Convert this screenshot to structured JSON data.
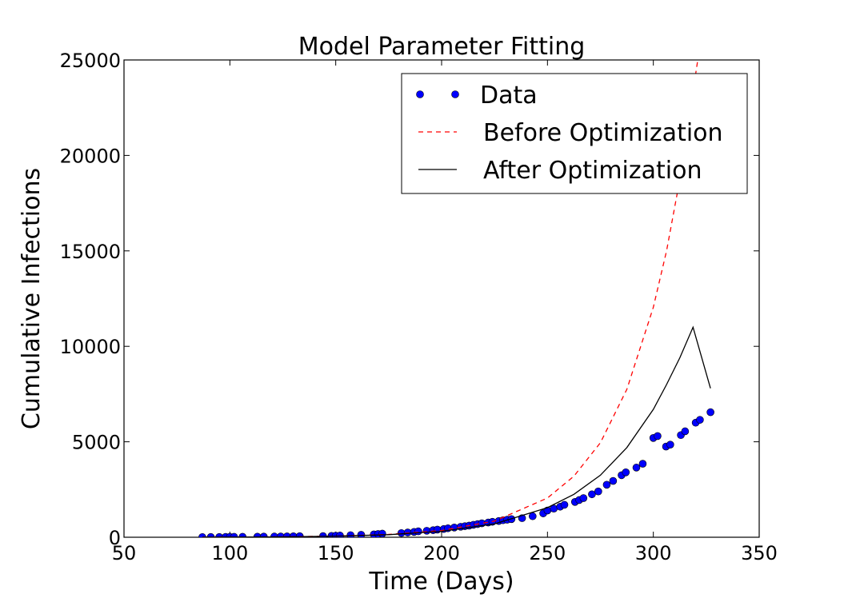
{
  "chart_data": {
    "type": "scatter",
    "title": "Model Parameter Fitting",
    "xlabel": "Time (Days)",
    "ylabel": "Cumulative Infections",
    "xlim": [
      50,
      350
    ],
    "ylim": [
      0,
      25000
    ],
    "xticks": [
      50,
      100,
      150,
      200,
      250,
      300,
      350
    ],
    "yticks": [
      0,
      5000,
      10000,
      15000,
      20000,
      25000
    ],
    "grid": false,
    "legend_position": "upper-right",
    "series": [
      {
        "name": "Data",
        "kind": "markers",
        "color": "#0000ff",
        "x": [
          87,
          91,
          95,
          98,
          100,
          102,
          106,
          113,
          116,
          121,
          124,
          127,
          130,
          133,
          144,
          148,
          150,
          152,
          157,
          162,
          168,
          170,
          172,
          181,
          184,
          187,
          189,
          193,
          196,
          198,
          201,
          203,
          206,
          209,
          211,
          213,
          215,
          217,
          219,
          222,
          224,
          227,
          229,
          231,
          233,
          238,
          243,
          248,
          250,
          253,
          256,
          258,
          263,
          265,
          267,
          271,
          274,
          278,
          281,
          285,
          287,
          292,
          295,
          300,
          302,
          306,
          308,
          313,
          315,
          320,
          322,
          327
        ],
        "y": [
          10,
          15,
          15,
          18,
          20,
          22,
          25,
          30,
          35,
          38,
          40,
          45,
          50,
          55,
          60,
          70,
          80,
          90,
          110,
          130,
          150,
          170,
          190,
          220,
          250,
          280,
          310,
          340,
          370,
          400,
          430,
          470,
          510,
          550,
          580,
          610,
          650,
          690,
          730,
          770,
          810,
          850,
          890,
          920,
          950,
          1000,
          1100,
          1250,
          1400,
          1500,
          1600,
          1700,
          1850,
          1950,
          2050,
          2250,
          2400,
          2750,
          2950,
          3250,
          3400,
          3650,
          3850,
          5200,
          5300,
          4750,
          4850,
          5350,
          5550,
          6000,
          6150,
          6550
        ]
      },
      {
        "name": "Before Optimization",
        "kind": "dashed-line",
        "color": "#ff0000",
        "x": [
          87,
          100,
          125,
          150,
          175,
          200,
          225,
          250,
          262.5,
          275,
          287.5,
          300,
          306.25,
          312.5,
          318.75,
          321
        ],
        "y": [
          5,
          10,
          25,
          60,
          150,
          350,
          850,
          2050,
          3200,
          4950,
          7750,
          12050,
          15000,
          18750,
          23350,
          25000
        ]
      },
      {
        "name": "After Optimization",
        "kind": "solid-line",
        "color": "#000000",
        "x": [
          87,
          100,
          125,
          150,
          175,
          200,
          225,
          250,
          262.5,
          275,
          287.5,
          300,
          306.25,
          312.5,
          318.75,
          327
        ],
        "y": [
          5,
          9,
          23,
          55,
          135,
          310,
          700,
          1550,
          2250,
          3250,
          4700,
          6700,
          8000,
          9400,
          11000,
          7800
        ]
      }
    ]
  }
}
